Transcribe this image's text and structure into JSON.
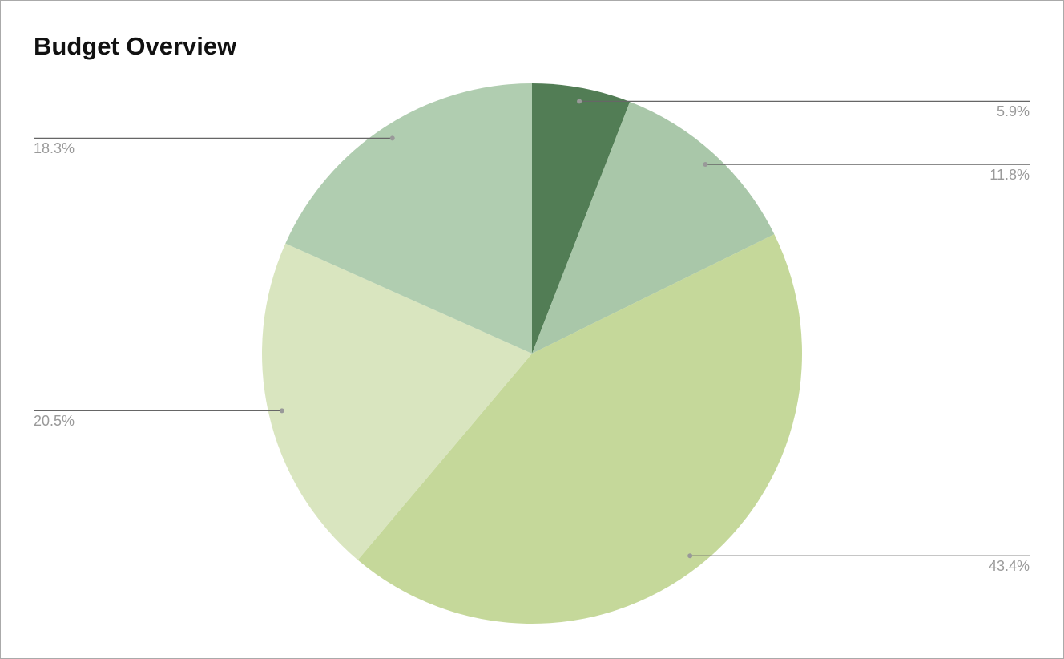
{
  "chart_data": {
    "type": "pie",
    "title": "Budget Overview",
    "values": [
      5.9,
      11.8,
      43.4,
      20.5,
      18.3
    ],
    "value_labels": [
      "5.9%",
      "11.8%",
      "43.4%",
      "20.5%",
      "18.3%"
    ],
    "colors": [
      "#527d55",
      "#a9c7a9",
      "#c5d89a",
      "#d9e5bf",
      "#b0cdb0"
    ]
  }
}
